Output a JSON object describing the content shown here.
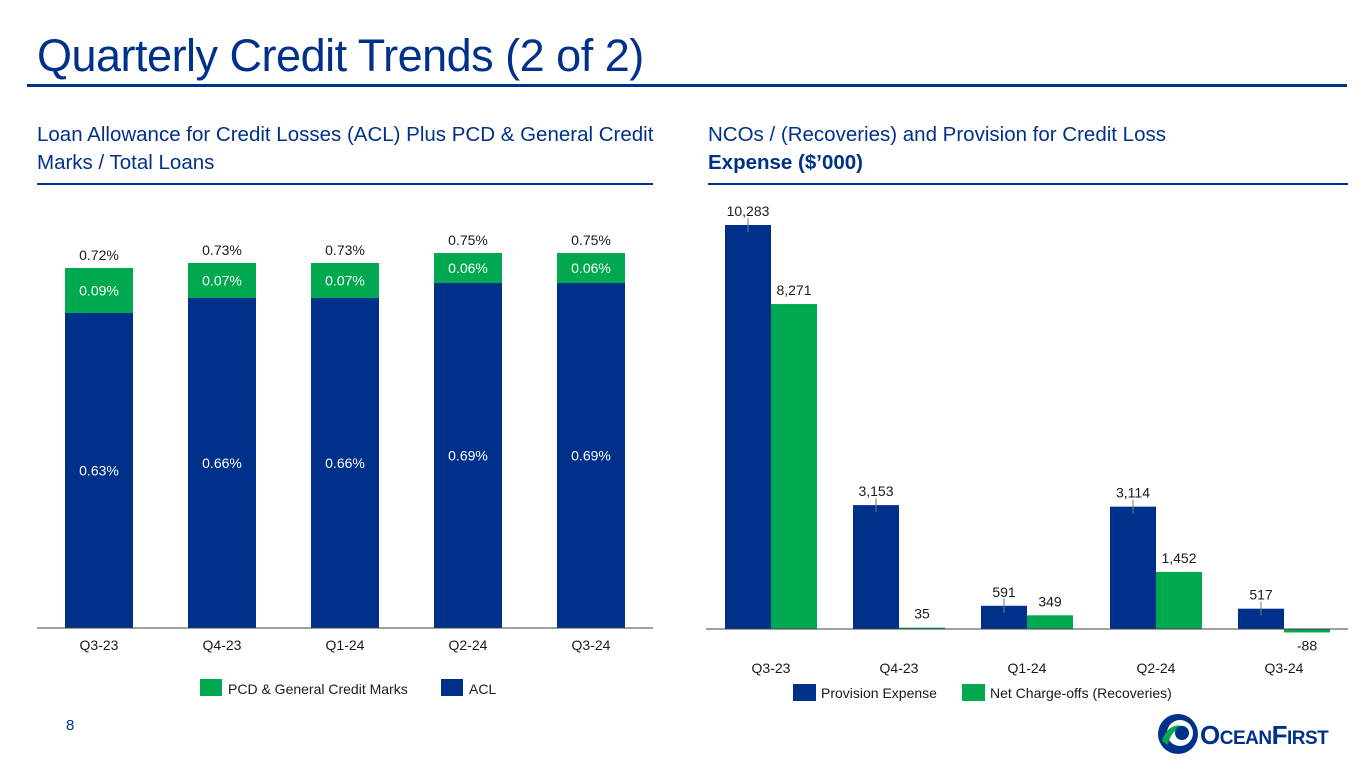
{
  "page": {
    "title": "Quarterly Credit Trends (2 of 2)",
    "page_number": "8",
    "logo_text_big1": "O",
    "logo_text_small1": "CEAN",
    "logo_text_big2": "F",
    "logo_text_small2": "IRST"
  },
  "colors": {
    "navy": "#00318a",
    "green": "#00a94f"
  },
  "left_panel": {
    "subtitle": "Loan Allowance for Credit Losses (ACL) Plus PCD & General Credit Marks / Total Loans"
  },
  "right_panel": {
    "subtitle_line1": "NCOs / (Recoveries) and Provision for Credit Loss",
    "subtitle_line2": "Expense ($’000)"
  },
  "chart_data": [
    {
      "type": "bar",
      "stacked": true,
      "categories": [
        "Q3-23",
        "Q4-23",
        "Q1-24",
        "Q2-24",
        "Q3-24"
      ],
      "series": [
        {
          "name": "ACL",
          "values": [
            0.63,
            0.66,
            0.66,
            0.69,
            0.69
          ],
          "labels": [
            "0.63%",
            "0.66%",
            "0.66%",
            "0.69%",
            "0.69%"
          ],
          "color": "#00318a"
        },
        {
          "name": "PCD & General Credit Marks",
          "values": [
            0.09,
            0.07,
            0.07,
            0.06,
            0.06
          ],
          "labels": [
            "0.09%",
            "0.07%",
            "0.07%",
            "0.06%",
            "0.06%"
          ],
          "color": "#00a94f"
        }
      ],
      "totals": [
        "0.72%",
        "0.73%",
        "0.73%",
        "0.75%",
        "0.75%"
      ],
      "ylim": [
        0,
        0.8
      ],
      "legend": [
        "PCD & General Credit Marks",
        "ACL"
      ],
      "legend_position": "bottom"
    },
    {
      "type": "bar",
      "stacked": false,
      "categories": [
        "Q3-23",
        "Q4-23",
        "Q1-24",
        "Q2-24",
        "Q3-24"
      ],
      "series": [
        {
          "name": "Provision Expense",
          "values": [
            10283,
            3153,
            591,
            3114,
            517
          ],
          "labels": [
            "10,283",
            "3,153",
            "591",
            "3,114",
            "517"
          ],
          "color": "#00318a"
        },
        {
          "name": "Net Charge-offs (Recoveries)",
          "values": [
            8271,
            35,
            349,
            1452,
            -88
          ],
          "labels": [
            "8,271",
            "35",
            "349",
            "1,452",
            "-88"
          ],
          "color": "#00a94f"
        }
      ],
      "ylim": [
        -300,
        10500
      ],
      "legend": [
        "Provision Expense",
        "Net Charge-offs (Recoveries)"
      ],
      "legend_position": "bottom"
    }
  ]
}
